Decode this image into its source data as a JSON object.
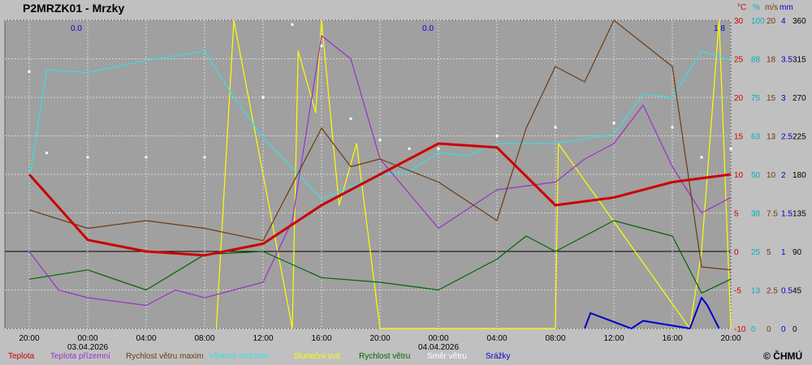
{
  "title": "P2MRZK01 - Mrzky",
  "copyright": "© ČHMÚ",
  "chart_data": {
    "type": "line",
    "x_ticks": [
      "20:00",
      "00:00",
      "04:00",
      "08:00",
      "12:00",
      "16:00",
      "20:00",
      "00:00",
      "04:00",
      "08:00",
      "12:00",
      "16:00",
      "20:00"
    ],
    "date_labels": [
      {
        "at": 1,
        "text": "03.04.2026"
      },
      {
        "at": 7,
        "text": "04.04.2026"
      }
    ],
    "value_labels": [
      "0.0",
      "0.0",
      "1.8"
    ],
    "axes": {
      "temp_c": {
        "unit": "°C",
        "ticks": [
          30,
          25,
          20,
          15,
          10,
          5,
          0,
          -5,
          -10
        ],
        "color": "#cc0000"
      },
      "humidity": {
        "unit": "%",
        "ticks": [
          100,
          88,
          75,
          63,
          50,
          38,
          25,
          13,
          0
        ],
        "color": "#00b0c0"
      },
      "wind": {
        "unit": "m/s",
        "ticks": [
          20,
          18,
          15,
          13,
          10,
          7.5,
          5,
          2.5,
          0
        ],
        "color": "#6b3b12"
      },
      "precip": {
        "unit": "mm",
        "ticks": [
          4,
          3.5,
          3,
          2.5,
          2,
          1.5,
          1,
          0.5,
          0
        ],
        "color": "#0000cc"
      },
      "direction": {
        "unit": "",
        "ticks": [
          360,
          315,
          270,
          225,
          180,
          135,
          90,
          45,
          0
        ],
        "color": "#000000"
      }
    },
    "y_range_temp": [
      -10,
      30
    ],
    "grid": true,
    "legend": [
      {
        "name": "Teplota",
        "color": "#cc0000"
      },
      {
        "name": "Teplota přízemní",
        "color": "#9a30c8"
      },
      {
        "name": "Rychlost větru maxim",
        "color": "#6b3b12"
      },
      {
        "name": "Vlhkost vzduchu",
        "color": "#33e0e6"
      },
      {
        "name": "Sluneční svit",
        "color": "#ffff00"
      },
      {
        "name": "Rychlost větru",
        "color": "#006600"
      },
      {
        "name": "Směr  větru",
        "color": "#ffffff"
      },
      {
        "name": "Srážky",
        "color": "#0000cc"
      }
    ],
    "series": [
      {
        "name": "Teplota",
        "key": "temp",
        "x": [
          0,
          1,
          2,
          3,
          4,
          5,
          6,
          7,
          8,
          9,
          10,
          11,
          12
        ],
        "values": [
          10,
          1.5,
          0,
          -0.5,
          1,
          6,
          10,
          14,
          13.5,
          6,
          7,
          9,
          10
        ]
      },
      {
        "name": "Teplota přízemní",
        "key": "ground",
        "x": [
          0,
          0.5,
          1,
          2,
          2.5,
          3,
          4,
          4.5,
          5,
          5.5,
          6,
          7,
          8,
          9,
          9.5,
          10,
          10.5,
          11,
          11.5,
          12
        ],
        "values": [
          0,
          -5,
          -6,
          -7,
          -5,
          -6,
          -4,
          4,
          28,
          25,
          12,
          3,
          8,
          9,
          12,
          14,
          19,
          11,
          5,
          7
        ]
      },
      {
        "name": "Rychlost větru maxim",
        "key": "gust",
        "x": [
          0,
          1,
          2,
          3,
          4,
          5,
          5.5,
          6,
          7,
          8,
          8.5,
          9,
          9.5,
          10,
          11,
          11.5,
          12
        ],
        "values": [
          7.7,
          6.5,
          7,
          6.5,
          5.7,
          13,
          10.5,
          11,
          9.5,
          7,
          13,
          17,
          16,
          20,
          17,
          4,
          3.8
        ]
      },
      {
        "name": "Vlhkost vzduchu",
        "key": "hum",
        "x": [
          0,
          0.3,
          1,
          2,
          3,
          3.5,
          4,
          5,
          6,
          6.5,
          7,
          7.5,
          8,
          9,
          10,
          10.5,
          11,
          11.5,
          12
        ],
        "values": [
          48,
          84,
          83,
          87,
          90,
          75,
          62,
          42,
          50,
          51,
          57,
          56,
          60,
          60,
          63,
          76,
          75,
          90,
          87
        ]
      },
      {
        "name": "Rychlost větru",
        "key": "wind",
        "x": [
          0,
          1,
          2,
          3,
          4,
          5,
          6,
          7,
          8,
          8.5,
          9,
          10,
          11,
          11.5,
          12
        ],
        "values": [
          3.2,
          3.8,
          2.5,
          4.8,
          5,
          3.3,
          3,
          2.5,
          4.5,
          6,
          5,
          7,
          6,
          2.3,
          3.2
        ]
      },
      {
        "name": "Směr  větru",
        "key": "dir",
        "x": [
          0,
          0.3,
          1,
          2,
          3,
          4,
          4.5,
          5,
          5.5,
          6,
          6.5,
          7,
          8,
          9,
          10,
          11,
          11.5,
          12
        ],
        "values": [
          300,
          205,
          200,
          200,
          200,
          270,
          355,
          330,
          245,
          220,
          210,
          210,
          225,
          235,
          240,
          235,
          200,
          210
        ]
      },
      {
        "name": "Sluneční svit",
        "key": "sun",
        "x": [
          3.2,
          3.5,
          4.5,
          4.6,
          4.9,
          5.0,
          5.3,
          5.6,
          6,
          9,
          9.05,
          11.3,
          11.5,
          11.8,
          12
        ],
        "values": [
          0,
          100,
          0,
          90,
          70,
          100,
          40,
          60,
          0,
          0,
          60,
          0,
          25,
          100,
          0
        ]
      },
      {
        "name": "Srážky",
        "key": "rain",
        "x": [
          9.5,
          9.6,
          10.3,
          10.5,
          11.3,
          11.5,
          11.6,
          11.8
        ],
        "values": [
          0,
          0.2,
          0,
          0.1,
          0,
          0.4,
          0.3,
          0
        ]
      }
    ]
  }
}
